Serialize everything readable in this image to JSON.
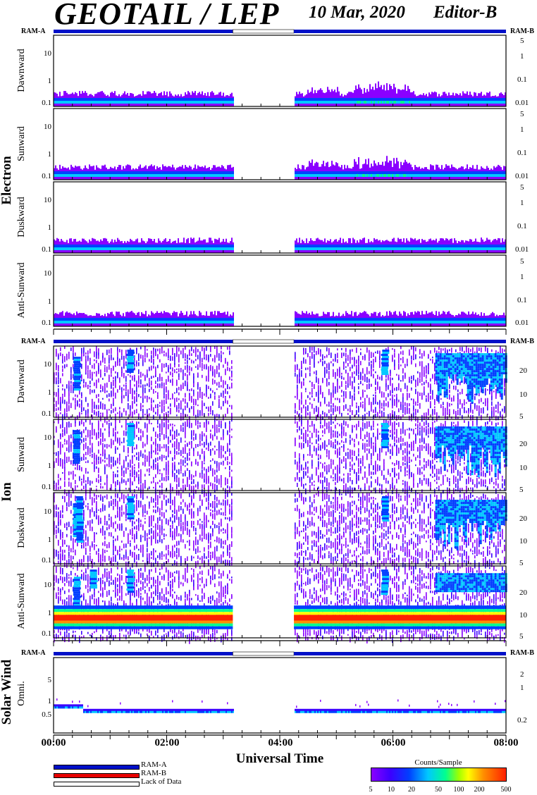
{
  "header": {
    "title": "GEOTAIL / LEP",
    "date": "10 Mar, 2020",
    "editor": "Editor-B"
  },
  "colors": {
    "ram_a": "#0010c8",
    "ram_b": "#e80000",
    "lack_of_data": "#ffffff",
    "spectrogram_scale": [
      "#8a00ff",
      "#3c00ff",
      "#0040ff",
      "#00c8ff",
      "#00ff90",
      "#a0ff00",
      "#ffff00",
      "#ff9000",
      "#ff2000"
    ]
  },
  "chart_data": {
    "type": "heatmap",
    "xlabel": "Universal Time",
    "x_ticks": [
      "00:00",
      "02:00",
      "04:00",
      "06:00",
      "08:00"
    ],
    "x_range_hours": [
      0,
      8
    ],
    "data_gap_hours": [
      3.17,
      4.25
    ],
    "y_scale": "log",
    "ram_label_a": "RAM-A",
    "ram_label_b": "RAM-B",
    "groups": [
      {
        "label": "Electron",
        "panels": [
          {
            "label": "Dawnward",
            "left_ticks": [
              "10",
              "1",
              "0.1"
            ],
            "right_ticks": [
              "5",
              "1",
              "0.1",
              "0.01"
            ]
          },
          {
            "label": "Sunward",
            "left_ticks": [
              "10",
              "1",
              "0.1"
            ],
            "right_ticks": [
              "5",
              "1",
              "0.1",
              "0.01"
            ]
          },
          {
            "label": "Duskward",
            "left_ticks": [
              "10",
              "1",
              "0.1"
            ],
            "right_ticks": [
              "5",
              "1",
              "0.1",
              "0.01"
            ]
          },
          {
            "label": "Anti-Sunward",
            "left_ticks": [
              "10",
              "1",
              "0.1"
            ],
            "right_ticks": [
              "5",
              "1",
              "0.1",
              "0.01"
            ]
          }
        ]
      },
      {
        "label": "Ion",
        "panels": [
          {
            "label": "Dawnward",
            "left_ticks": [
              "10",
              "1",
              "0.1"
            ],
            "right_ticks": [
              "20",
              "10",
              "5"
            ]
          },
          {
            "label": "Sunward",
            "left_ticks": [
              "10",
              "1",
              "0.1"
            ],
            "right_ticks": [
              "20",
              "10",
              "5"
            ]
          },
          {
            "label": "Duskward",
            "left_ticks": [
              "10",
              "1",
              "0.1"
            ],
            "right_ticks": [
              "20",
              "10",
              "5"
            ]
          },
          {
            "label": "Anti-Sunward",
            "left_ticks": [
              "10",
              "1",
              "0.1"
            ],
            "right_ticks": [
              "20",
              "10",
              "5"
            ]
          }
        ]
      },
      {
        "label": "Solar Wind",
        "panels": [
          {
            "label": "Omni.",
            "left_ticks": [
              "5",
              "1",
              "0.5"
            ],
            "right_ticks": [
              "2",
              "1",
              "0.2"
            ]
          }
        ]
      }
    ],
    "legend": [
      "RAM-A",
      "RAM-B",
      "Lack of Data"
    ],
    "colorbar": {
      "title": "Counts/Sample",
      "ticks": [
        "5",
        "10",
        "20",
        "50",
        "100",
        "200",
        "500"
      ]
    }
  }
}
